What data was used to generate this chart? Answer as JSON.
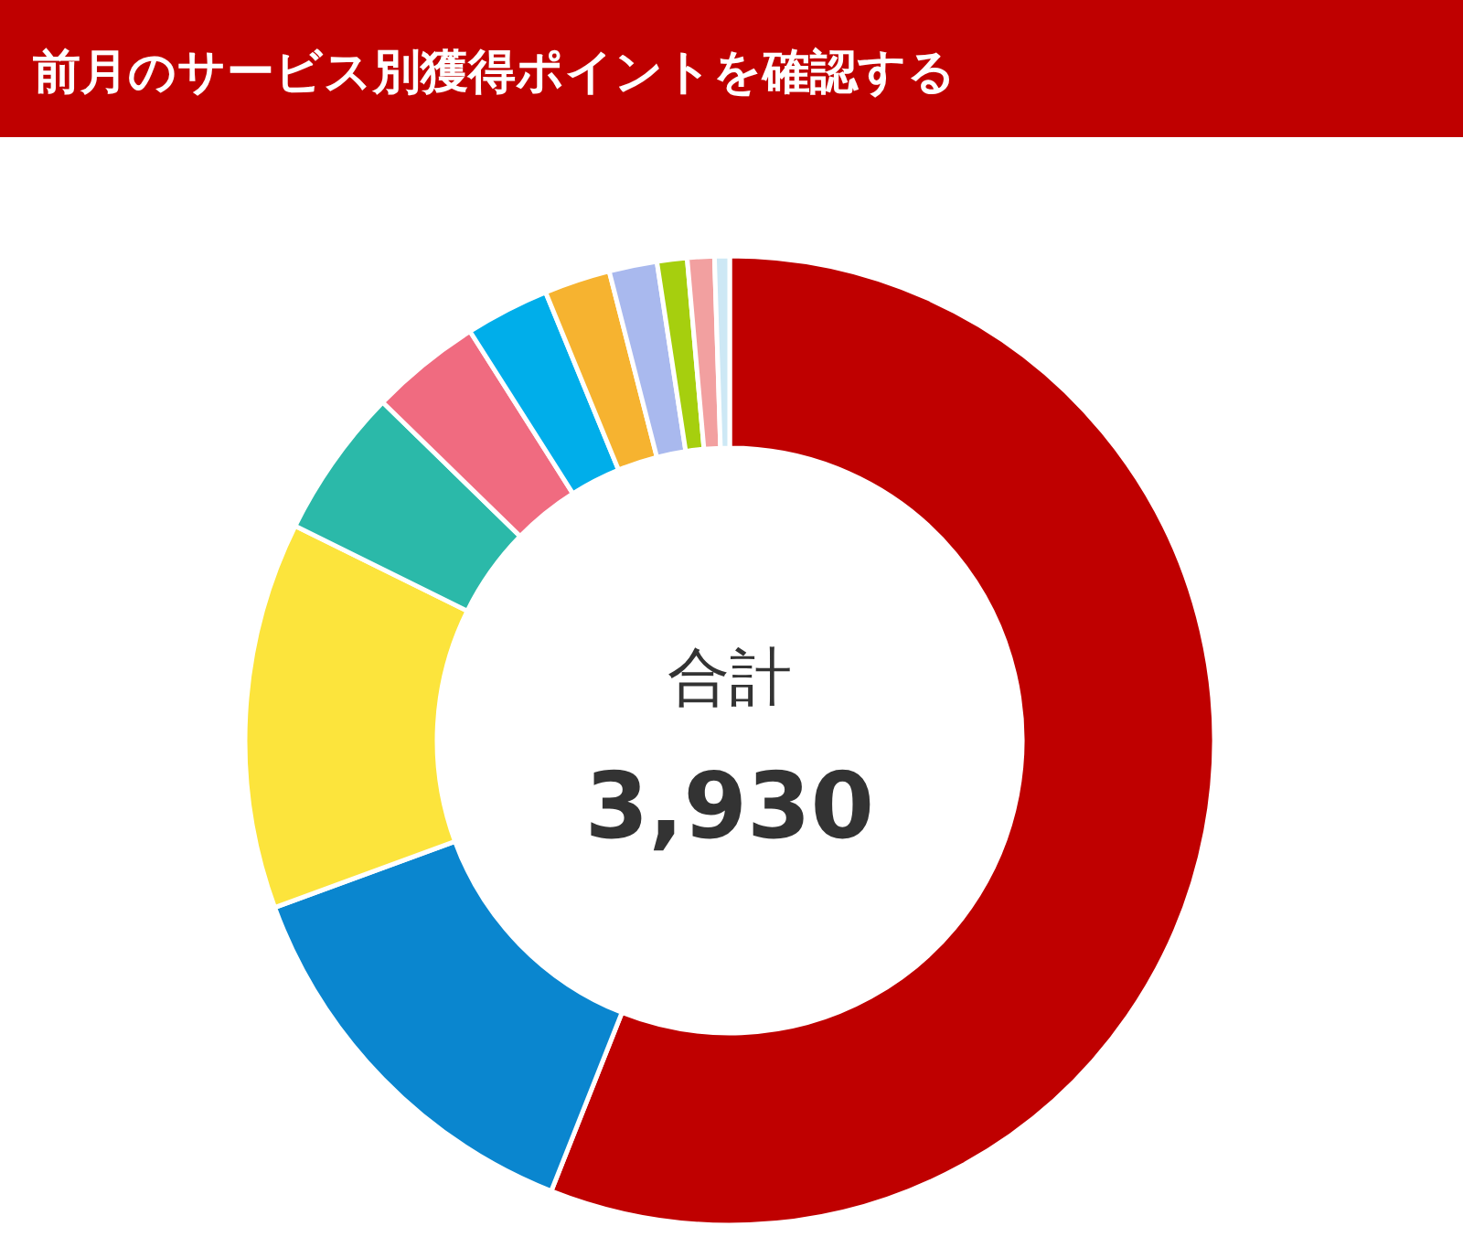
{
  "chart_data": {
    "type": "donut",
    "title": "前月のサービス別獲得ポイントを確認する",
    "categories": [
      null,
      null,
      null,
      null,
      null,
      null,
      null,
      null,
      null,
      null,
      null
    ],
    "values": [
      56.0,
      13.4,
      12.9,
      5.0,
      3.7,
      2.8,
      2.2,
      1.6,
      1.0,
      0.9,
      0.5
    ],
    "colors": [
      "#bf0000",
      "#0a86cf",
      "#fce43c",
      "#2bb9a9",
      "#f06b80",
      "#00aeea",
      "#f6b330",
      "#a9b9ee",
      "#a6cf0e",
      "#f2a0a0",
      "#cde8f5"
    ],
    "annotations": [
      "合計",
      "3,930"
    ]
  }
}
